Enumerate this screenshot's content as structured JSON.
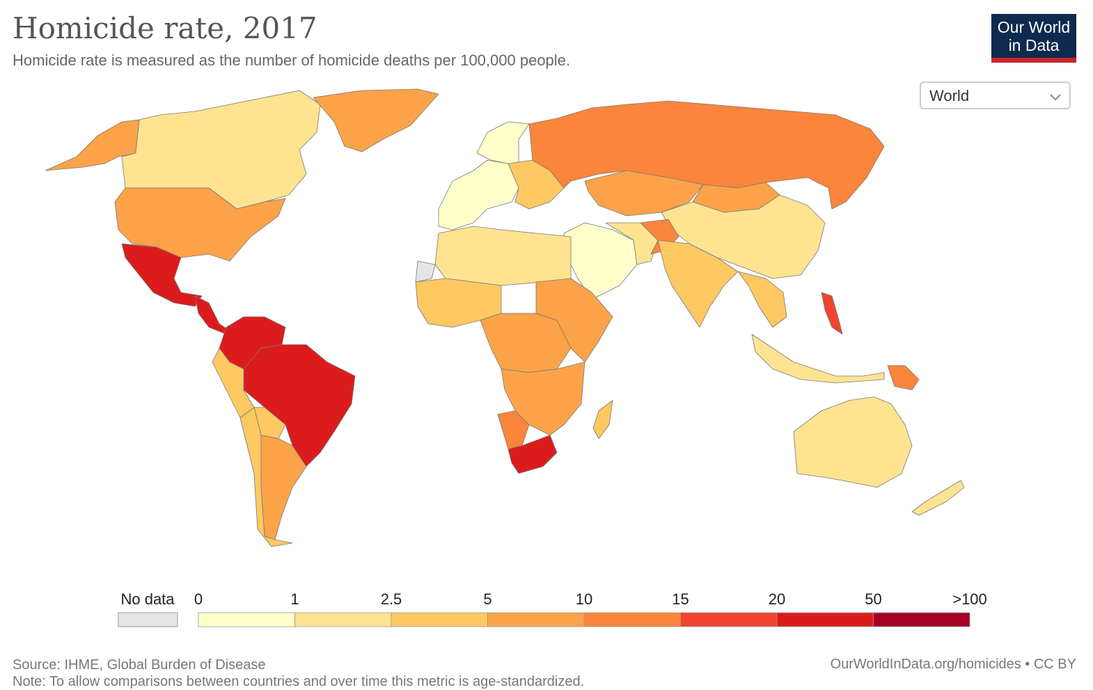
{
  "header": {
    "title": "Homicide rate, 2017",
    "subtitle": "Homicide rate is measured as the number of homicide deaths per 100,000 people."
  },
  "logo": {
    "line1": "Our World",
    "line2": "in Data"
  },
  "region_selector": {
    "selected": "World"
  },
  "legend": {
    "no_data_label": "No data",
    "no_data_color": "#e6e6e6",
    "ticks": [
      "0",
      "1",
      "2.5",
      "5",
      "10",
      "15",
      "20",
      "50",
      ">100"
    ],
    "colors": [
      "#ffffcc",
      "#fee391",
      "#fec862",
      "#fca349",
      "#fb853a",
      "#f0442e",
      "#dc1c1c",
      "#a50026"
    ]
  },
  "footer": {
    "source": "Source: IHME, Global Burden of Disease",
    "note": "Note: To allow comparisons between countries and over time this metric is age-standardized.",
    "link": "OurWorldInData.org/homicides • CC BY"
  },
  "map_regions": [
    {
      "name": "Canada",
      "bin": 1
    },
    {
      "name": "Alaska",
      "bin": 3
    },
    {
      "name": "Greenland",
      "bin": 3
    },
    {
      "name": "United States",
      "bin": 3
    },
    {
      "name": "Mexico",
      "bin": 6
    },
    {
      "name": "Central America",
      "bin": 6
    },
    {
      "name": "Colombia & Venezuela",
      "bin": 6
    },
    {
      "name": "Brazil",
      "bin": 6
    },
    {
      "name": "Peru",
      "bin": 2
    },
    {
      "name": "Bolivia",
      "bin": 2
    },
    {
      "name": "Argentina",
      "bin": 3
    },
    {
      "name": "Chile",
      "bin": 2
    },
    {
      "name": "Western Europe",
      "bin": 0
    },
    {
      "name": "Eastern Europe",
      "bin": 2
    },
    {
      "name": "Russia",
      "bin": 4
    },
    {
      "name": "Kazakhstan",
      "bin": 3
    },
    {
      "name": "China",
      "bin": 1
    },
    {
      "name": "Mongolia",
      "bin": 3
    },
    {
      "name": "India",
      "bin": 2
    },
    {
      "name": "Middle East",
      "bin": 0
    },
    {
      "name": "Afghanistan",
      "bin": 4
    },
    {
      "name": "Southeast Asia",
      "bin": 2
    },
    {
      "name": "Philippines",
      "bin": 5
    },
    {
      "name": "Indonesia",
      "bin": 1
    },
    {
      "name": "Papua New Guinea",
      "bin": 4
    },
    {
      "name": "Australia",
      "bin": 1
    },
    {
      "name": "New Zealand",
      "bin": 1
    },
    {
      "name": "North Africa",
      "bin": 1
    },
    {
      "name": "West Africa",
      "bin": 2
    },
    {
      "name": "Central Africa",
      "bin": 3
    },
    {
      "name": "East Africa",
      "bin": 3
    },
    {
      "name": "Southern Africa",
      "bin": 3
    },
    {
      "name": "Namibia",
      "bin": 4
    },
    {
      "name": "South Africa",
      "bin": 6
    },
    {
      "name": "Madagascar",
      "bin": 2
    },
    {
      "name": "Western Sahara",
      "bin": -1
    }
  ]
}
